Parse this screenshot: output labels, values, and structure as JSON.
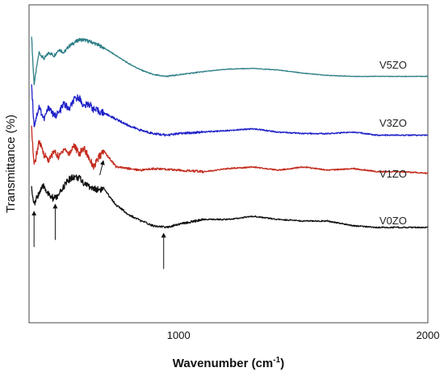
{
  "chart_data": {
    "type": "line",
    "title": "",
    "xlabel": "Wavenumber (cm",
    "xlabel_sup": "-1",
    "xlabel_close": ")",
    "ylabel": "Transmittance (%)",
    "xlim": [
      400,
      2000
    ],
    "ylim": [
      0,
      100
    ],
    "grid": false,
    "legend": "none",
    "x_ticks": [
      {
        "value": 1000,
        "label": "1000"
      },
      {
        "value": 2000,
        "label": "2000"
      }
    ],
    "series": [
      {
        "name": "V5ZO",
        "color": "#2e7f87",
        "x": [
          410,
          420,
          440,
          460,
          480,
          500,
          520,
          540,
          560,
          580,
          600,
          620,
          640,
          660,
          700,
          750,
          800,
          850,
          900,
          950,
          1000,
          1100,
          1200,
          1300,
          1400,
          1500,
          1600,
          1700,
          1800,
          1900,
          2000
        ],
        "y": [
          90,
          75,
          85,
          83,
          85,
          84,
          86,
          85,
          87,
          88,
          89,
          89,
          88.5,
          88,
          86.5,
          84,
          81.5,
          79.5,
          78,
          77.5,
          78,
          79,
          79.8,
          80,
          79.5,
          78.5,
          77.8,
          77.5,
          77.5,
          77.5,
          77.5
        ]
      },
      {
        "name": "V3ZO",
        "color": "#1f22c8",
        "x": [
          410,
          420,
          440,
          460,
          480,
          500,
          520,
          540,
          560,
          580,
          600,
          620,
          640,
          660,
          700,
          750,
          800,
          850,
          900,
          950,
          1000,
          1100,
          1200,
          1300,
          1400,
          1500,
          1600,
          1700,
          1800,
          1900,
          2000
        ],
        "y": [
          75,
          62,
          68,
          64,
          68,
          65,
          66,
          69,
          67,
          70,
          71,
          68,
          69,
          67,
          66,
          64,
          62,
          60.5,
          59.5,
          59,
          59.5,
          60,
          60.5,
          61,
          60,
          59.5,
          59.5,
          60,
          59,
          59,
          59
        ]
      },
      {
        "name": "V1ZO",
        "color": "#c32b1e",
        "x": [
          410,
          420,
          440,
          460,
          480,
          500,
          520,
          540,
          560,
          580,
          600,
          620,
          640,
          660,
          680,
          700,
          720,
          750,
          800,
          850,
          900,
          1000,
          1100,
          1200,
          1300,
          1400,
          1500,
          1600,
          1700,
          1800,
          1900,
          2000
        ],
        "y": [
          62,
          49,
          57,
          53,
          51,
          54,
          52,
          55,
          53,
          56,
          53,
          55,
          52,
          49,
          52,
          54,
          52,
          49,
          48.5,
          48,
          48.5,
          48,
          47.5,
          48.5,
          49,
          48,
          49,
          48,
          48.5,
          47.5,
          47.5,
          47
        ]
      },
      {
        "name": "V0ZO",
        "color": "#111111",
        "x": [
          410,
          420,
          440,
          460,
          480,
          500,
          520,
          540,
          560,
          580,
          600,
          620,
          640,
          660,
          680,
          700,
          720,
          750,
          800,
          850,
          900,
          950,
          1000,
          1100,
          1200,
          1300,
          1400,
          1500,
          1600,
          1700,
          1800,
          1900,
          2000
        ],
        "y": [
          43,
          37,
          41,
          43,
          40,
          39,
          40,
          43,
          45,
          46,
          45.5,
          44,
          43,
          42,
          42,
          42,
          40,
          37,
          34,
          32,
          30.5,
          30,
          31,
          32.5,
          32.5,
          33.5,
          32.5,
          32,
          32,
          30.5,
          30,
          30,
          30
        ]
      }
    ],
    "annotations": [
      {
        "type": "arrow",
        "x": 420,
        "series": "V0ZO"
      },
      {
        "type": "arrow",
        "x": 505,
        "series": "V0ZO"
      },
      {
        "type": "arrow",
        "x": 940,
        "series": "V0ZO"
      },
      {
        "type": "arrow",
        "x": 690,
        "series": "V1ZO"
      }
    ]
  }
}
